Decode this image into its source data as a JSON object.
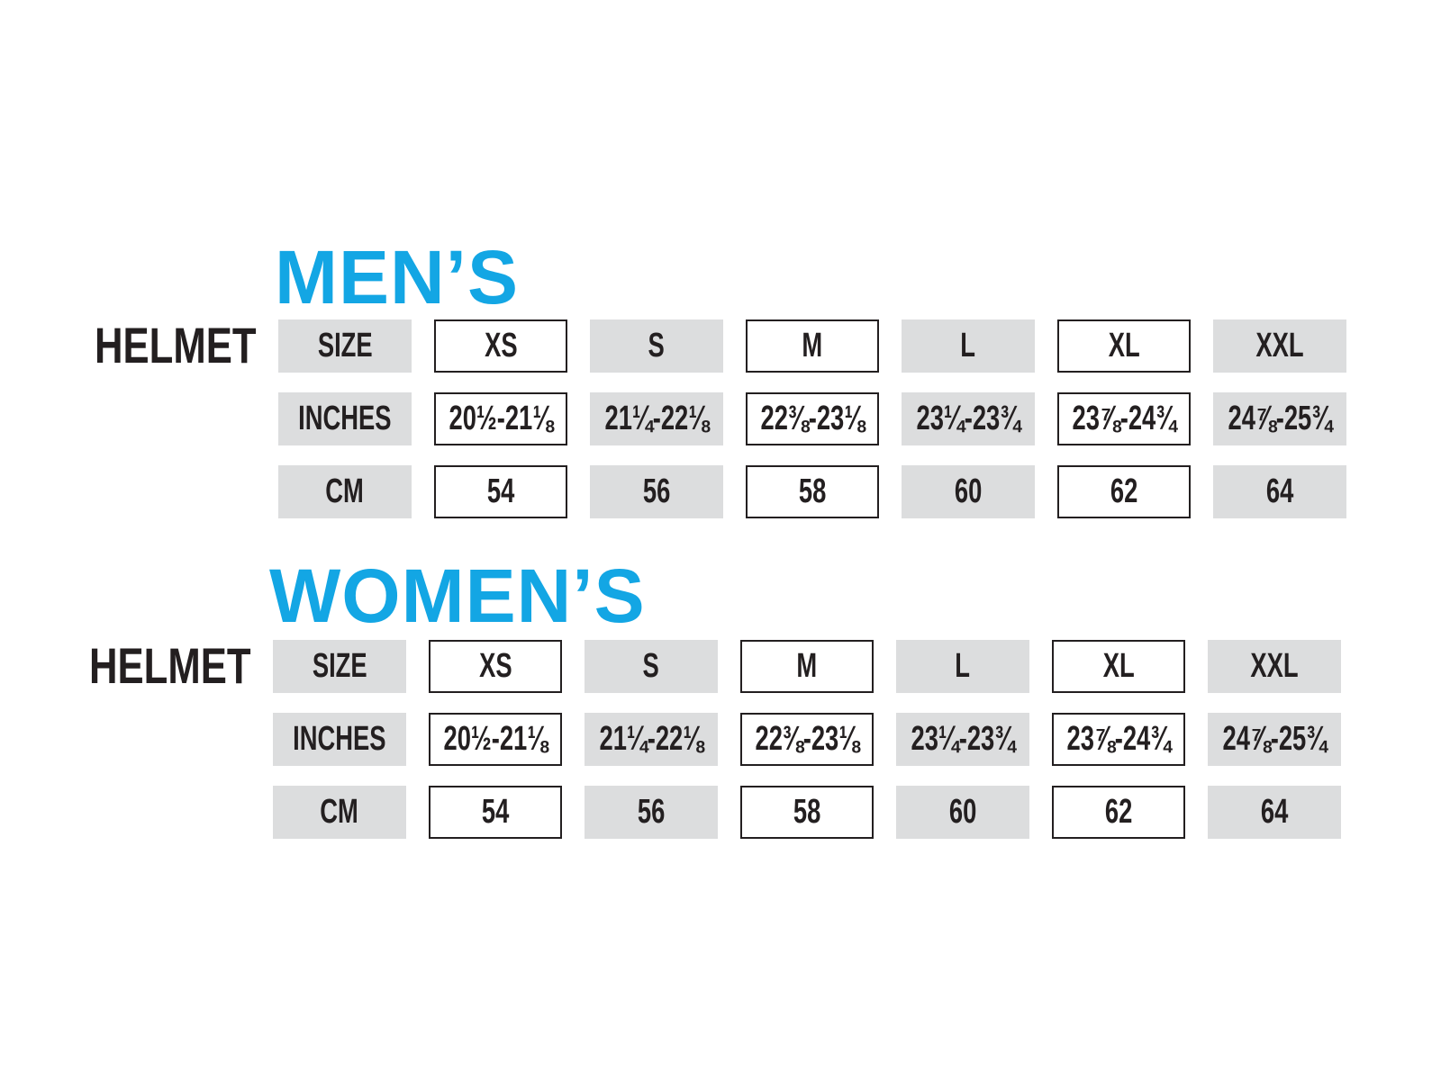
{
  "sections": [
    {
      "title": "MEN’S",
      "label": "HELMET",
      "rows": [
        {
          "header": "SIZE",
          "cells": [
            "XS",
            "S",
            "M",
            "L",
            "XL",
            "XXL"
          ]
        },
        {
          "header": "INCHES",
          "cells": [
            "20½-21⅛",
            "21¼-22⅛",
            "22⅜-23⅛",
            "23¼-23¾",
            "23⅞-24¾",
            "24⅞-25¾"
          ]
        },
        {
          "header": "CM",
          "cells": [
            54,
            56,
            58,
            60,
            62,
            64
          ]
        }
      ]
    },
    {
      "title": "WOMEN’S",
      "label": "HELMET",
      "rows": [
        {
          "header": "SIZE",
          "cells": [
            "XS",
            "S",
            "M",
            "L",
            "XL",
            "XXL"
          ]
        },
        {
          "header": "INCHES",
          "cells": [
            "20½-21⅛",
            "21¼-22⅛",
            "22⅜-23⅛",
            "23¼-23¾",
            "23⅞-24¾",
            "24⅞-25¾"
          ]
        },
        {
          "header": "CM",
          "cells": [
            54,
            56,
            58,
            60,
            62,
            64
          ]
        }
      ]
    }
  ]
}
